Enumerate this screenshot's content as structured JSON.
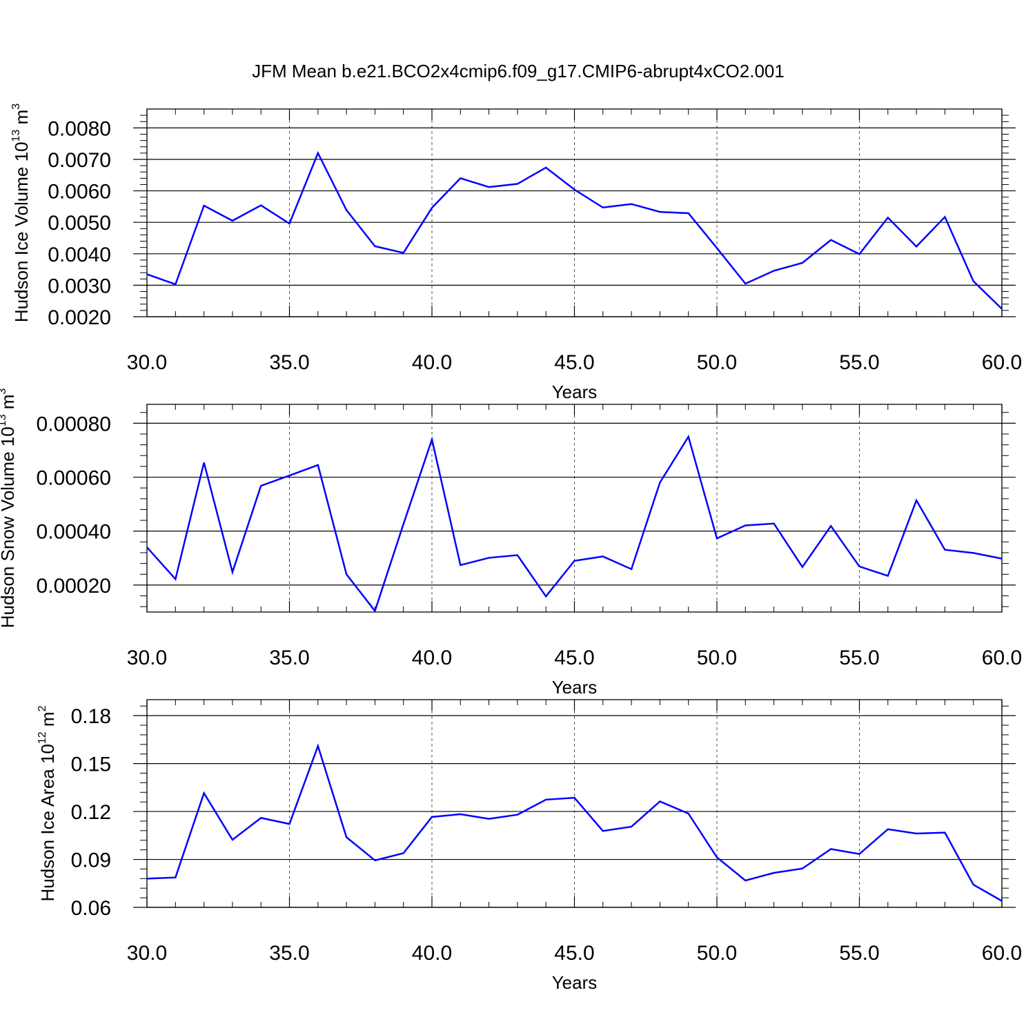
{
  "title": "JFM Mean b.e21.BCO2x4cmip6.f09_g17.CMIP6-abrupt4xCO2.001",
  "colors": {
    "line": "#0000ff",
    "axis": "#000000",
    "grid": "#555555",
    "background": "#ffffff"
  },
  "chart_data": [
    {
      "type": "line",
      "ylabel": {
        "main": "Hudson Ice Volume 10",
        "sup": "13",
        "unit": " m",
        "unit_sup": "3"
      },
      "xlabel": "Years",
      "xlim": [
        30,
        60
      ],
      "ylim": [
        0.002,
        0.0086
      ],
      "x_ticks": [
        "30.0",
        "35.0",
        "40.0",
        "45.0",
        "50.0",
        "55.0",
        "60.0"
      ],
      "y_ticks": [
        {
          "value": 0.002,
          "label": "0.0020"
        },
        {
          "value": 0.003,
          "label": "0.0030"
        },
        {
          "value": 0.004,
          "label": "0.0040"
        },
        {
          "value": 0.005,
          "label": "0.0050"
        },
        {
          "value": 0.006,
          "label": "0.0060"
        },
        {
          "value": 0.007,
          "label": "0.0070"
        },
        {
          "value": 0.008,
          "label": "0.0080"
        }
      ],
      "grid": "dashed vertical at major x ticks",
      "x": [
        30,
        31,
        32,
        33,
        34,
        35,
        36,
        37,
        38,
        39,
        40,
        41,
        42,
        43,
        44,
        45,
        46,
        47,
        48,
        49,
        50,
        51,
        52,
        53,
        54,
        55,
        56,
        57,
        58,
        59,
        60
      ],
      "values": [
        0.00335,
        0.00303,
        0.00553,
        0.00505,
        0.00554,
        0.00496,
        0.0072,
        0.00539,
        0.00424,
        0.00403,
        0.00546,
        0.0064,
        0.00612,
        0.00622,
        0.00674,
        0.00604,
        0.00547,
        0.00558,
        0.00533,
        0.00529,
        0.00418,
        0.00305,
        0.00346,
        0.00371,
        0.00444,
        0.00399,
        0.00515,
        0.00423,
        0.00517,
        0.00313,
        0.00225
      ]
    },
    {
      "type": "line",
      "ylabel": {
        "main": "Hudson Snow Volume 10",
        "sup": "13",
        "unit": " m",
        "unit_sup": "3"
      },
      "xlabel": "Years",
      "xlim": [
        30,
        60
      ],
      "ylim": [
        0.0001,
        0.00087
      ],
      "x_ticks": [
        "30.0",
        "35.0",
        "40.0",
        "45.0",
        "50.0",
        "55.0",
        "60.0"
      ],
      "y_ticks": [
        {
          "value": 0.0002,
          "label": "0.00020"
        },
        {
          "value": 0.0004,
          "label": "0.00040"
        },
        {
          "value": 0.0006,
          "label": "0.00060"
        },
        {
          "value": 0.0008,
          "label": "0.00080"
        }
      ],
      "grid": "dashed vertical at major x ticks",
      "x": [
        30,
        31,
        32,
        33,
        34,
        35,
        36,
        37,
        38,
        39,
        40,
        41,
        42,
        43,
        44,
        45,
        46,
        47,
        48,
        49,
        50,
        51,
        52,
        53,
        54,
        55,
        56,
        57,
        58,
        59,
        60
      ],
      "values": [
        0.00034,
        0.000222,
        0.000654,
        0.000248,
        0.000568,
        0.000606,
        0.000645,
        0.00024,
        0.000104,
        0.000426,
        0.00074,
        0.000274,
        0.000301,
        0.000311,
        0.000158,
        0.00029,
        0.000306,
        0.000259,
        0.00058,
        0.00075,
        0.000373,
        0.000421,
        0.000428,
        0.000267,
        0.000419,
        0.000269,
        0.000234,
        0.000514,
        0.000331,
        0.000319,
        0.000298
      ]
    },
    {
      "type": "line",
      "ylabel": {
        "main": "Hudson Ice Area 10",
        "sup": "12",
        "unit": " m",
        "unit_sup": "2"
      },
      "xlabel": "Years",
      "xlim": [
        30,
        60
      ],
      "ylim": [
        0.06,
        0.19
      ],
      "x_ticks": [
        "30.0",
        "35.0",
        "40.0",
        "45.0",
        "50.0",
        "55.0",
        "60.0"
      ],
      "y_ticks": [
        {
          "value": 0.06,
          "label": "0.06"
        },
        {
          "value": 0.09,
          "label": "0.09"
        },
        {
          "value": 0.12,
          "label": "0.12"
        },
        {
          "value": 0.15,
          "label": "0.15"
        },
        {
          "value": 0.18,
          "label": "0.18"
        }
      ],
      "grid": "dashed vertical at major x ticks",
      "x": [
        30,
        31,
        32,
        33,
        34,
        35,
        36,
        37,
        38,
        39,
        40,
        41,
        42,
        43,
        44,
        45,
        46,
        47,
        48,
        49,
        50,
        51,
        52,
        53,
        54,
        55,
        56,
        57,
        58,
        59,
        60
      ],
      "values": [
        0.078,
        0.0787,
        0.1315,
        0.1023,
        0.116,
        0.1122,
        0.161,
        0.1039,
        0.0894,
        0.0939,
        0.1166,
        0.1183,
        0.1154,
        0.118,
        0.1274,
        0.1286,
        0.1078,
        0.1105,
        0.1263,
        0.1187,
        0.0913,
        0.0768,
        0.0816,
        0.0843,
        0.0965,
        0.0934,
        0.1089,
        0.1062,
        0.1068,
        0.0742,
        0.064
      ]
    }
  ]
}
